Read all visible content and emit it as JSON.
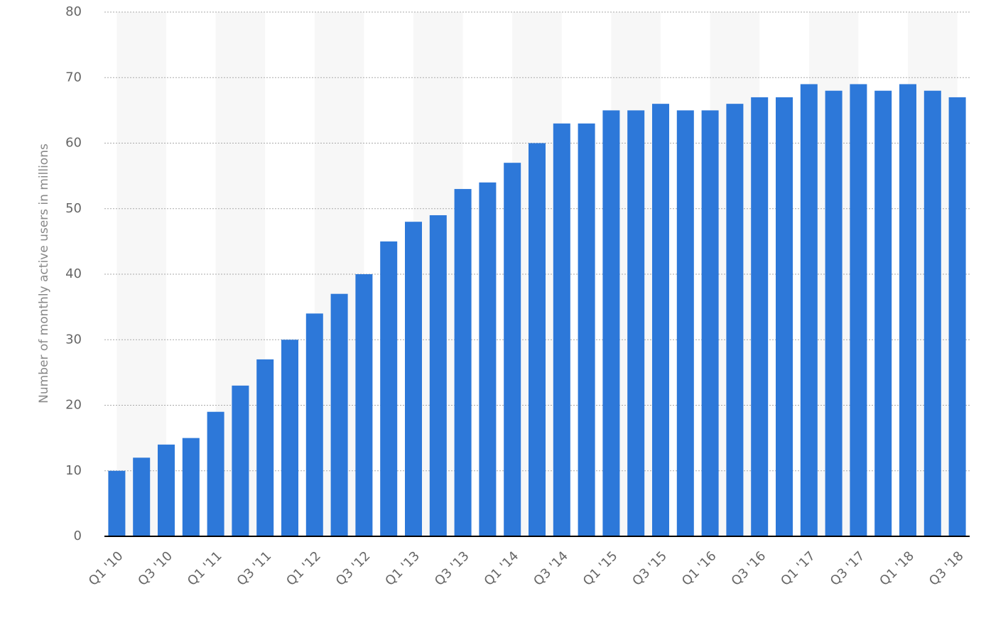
{
  "chart_data": {
    "type": "bar",
    "y_axis_label": "Number of monthly active users in millions",
    "categories": [
      "Q1 '10",
      null,
      "Q3 '10",
      null,
      "Q1 '11",
      null,
      "Q3 '11",
      null,
      "Q1 '12",
      null,
      "Q3 '12",
      null,
      "Q1 '13",
      null,
      "Q3 '13",
      null,
      "Q1 '14",
      null,
      "Q3 '14",
      null,
      "Q1 '15",
      null,
      "Q3 '15",
      null,
      "Q1 '16",
      null,
      "Q3 '16",
      null,
      "Q1 '17",
      null,
      "Q3 '17",
      null,
      "Q1 '18",
      null,
      "Q3 '18"
    ],
    "values": [
      10,
      12,
      14,
      15,
      19,
      23,
      27,
      30,
      34,
      37,
      40,
      45,
      48,
      49,
      53,
      54,
      57,
      60,
      63,
      63,
      65,
      65,
      66,
      65,
      65,
      66,
      67,
      67,
      69,
      68,
      69,
      68,
      69,
      68,
      67
    ],
    "color": "#2d78d9",
    "ylim": [
      0,
      80
    ],
    "yticks": [
      0,
      10,
      20,
      30,
      40,
      50,
      60,
      70,
      80
    ],
    "grid": true
  }
}
